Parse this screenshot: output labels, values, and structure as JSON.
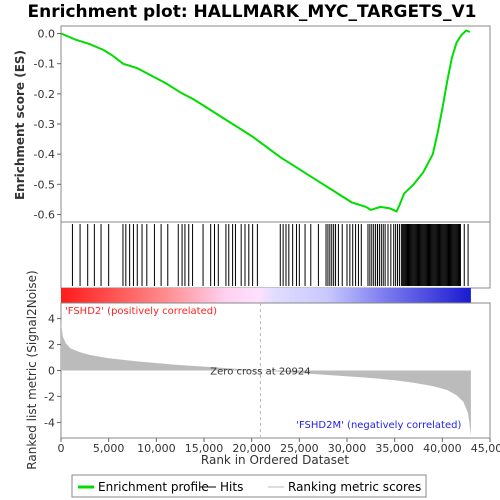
{
  "chart_data": {
    "title": "Enrichment plot: HALLMARK_MYC_TARGETS_V1",
    "top_panel": {
      "type": "line",
      "ylabel": "Enrichment score (ES)",
      "ylim": [
        -0.625,
        0.025
      ],
      "yticks": [
        "0.0",
        "-0.1",
        "-0.2",
        "-0.3",
        "-0.4",
        "-0.5",
        "-0.6"
      ],
      "ytick_values": [
        0.0,
        -0.1,
        -0.2,
        -0.3,
        -0.4,
        -0.5,
        -0.6
      ],
      "line_color": "#00dd00",
      "series": {
        "x": [
          0,
          1500,
          3000,
          4500,
          5500,
          6500,
          8000,
          9500,
          11000,
          12500,
          14000,
          15500,
          17000,
          18500,
          20000,
          21500,
          23000,
          24500,
          26000,
          27500,
          29000,
          30500,
          32000,
          32500,
          33500,
          34500,
          35200,
          35500,
          36000,
          37000,
          38000,
          39000,
          39500,
          40000,
          40500,
          41000,
          41500,
          42000,
          42500,
          42900
        ],
        "y": [
          0.0,
          -0.02,
          -0.035,
          -0.055,
          -0.075,
          -0.1,
          -0.115,
          -0.14,
          -0.165,
          -0.195,
          -0.22,
          -0.25,
          -0.28,
          -0.31,
          -0.34,
          -0.375,
          -0.41,
          -0.44,
          -0.47,
          -0.5,
          -0.53,
          -0.56,
          -0.575,
          -0.585,
          -0.575,
          -0.58,
          -0.59,
          -0.57,
          -0.53,
          -0.5,
          -0.46,
          -0.4,
          -0.33,
          -0.25,
          -0.16,
          -0.08,
          -0.03,
          -0.005,
          0.01,
          0.005
        ]
      }
    },
    "hits_panel": {
      "type": "hits",
      "hit_positions": [
        1200,
        2000,
        2800,
        3500,
        4200,
        5000,
        6500,
        6800,
        7200,
        7600,
        8000,
        8500,
        9000,
        9800,
        10500,
        11200,
        12300,
        12700,
        13000,
        13400,
        13800,
        14900,
        15700,
        16100,
        16500,
        17300,
        17600,
        18000,
        18300,
        18900,
        19300,
        19700,
        20100,
        20600,
        23000,
        23300,
        23600,
        23900,
        24300,
        24700,
        25000,
        25600,
        26200,
        27000,
        27800,
        28000,
        28200,
        28400,
        28600,
        28800,
        29100,
        29500,
        30000,
        30300,
        30600,
        30900,
        31200,
        31500,
        32200,
        32400,
        32600,
        32800,
        33000,
        33200,
        33400,
        33600,
        33800,
        34000,
        34300,
        34600,
        34900,
        35100,
        35300,
        35500,
        35700,
        35800,
        35900,
        36000,
        36100,
        36200,
        36300,
        36400,
        36500,
        36600,
        36700,
        36800,
        36900,
        37000,
        37100,
        37200,
        37300,
        37400,
        37500,
        37600,
        37700,
        37800,
        37900,
        38000,
        38100,
        38200,
        38300,
        38400,
        38500,
        38600,
        38700,
        38800,
        38900,
        39000,
        39100,
        39200,
        39300,
        39400,
        39500,
        39600,
        39700,
        39800,
        39900,
        40000,
        40100,
        40200,
        40300,
        40400,
        40500,
        40600,
        40700,
        40800,
        40900,
        41000,
        41100,
        41200,
        41300,
        41400,
        41500,
        41600,
        41700,
        41800,
        41900,
        42300,
        42700
      ]
    },
    "bottom_panel": {
      "type": "area",
      "ylabel": "Ranked list metric (Signal2Noise)",
      "xlabel": "Rank in Ordered Dataset",
      "ylim": [
        -5.2,
        5.2
      ],
      "yticks": [
        "4",
        "2",
        "0",
        "-2",
        "-4"
      ],
      "ytick_values": [
        4,
        2,
        0,
        -2,
        -4
      ],
      "xlim": [
        0,
        45000
      ],
      "xticks": [
        "0",
        "5,000",
        "10,000",
        "15,000",
        "20,000",
        "25,000",
        "30,000",
        "35,000",
        "40,000",
        "45,000"
      ],
      "xtick_values": [
        0,
        5000,
        10000,
        15000,
        20000,
        25000,
        30000,
        35000,
        40000,
        45000
      ],
      "series": {
        "x": [
          0,
          50,
          200,
          500,
          1000,
          2000,
          3000,
          5000,
          8000,
          12000,
          16000,
          20000,
          20924,
          24000,
          28000,
          32000,
          35000,
          37000,
          39000,
          40500,
          41500,
          42200,
          42700,
          43000
        ],
        "y": [
          4.0,
          3.4,
          2.6,
          2.1,
          1.7,
          1.4,
          1.2,
          0.95,
          0.7,
          0.45,
          0.25,
          0.05,
          0.0,
          -0.15,
          -0.35,
          -0.55,
          -0.75,
          -0.95,
          -1.2,
          -1.5,
          -1.9,
          -2.4,
          -3.3,
          -5.0
        ]
      },
      "fill_color": "#bbbbbb",
      "zero_cross_label": "Zero cross at 20924",
      "zero_cross_value": 20924,
      "pos_label": "'FSHD2' (positively correlated)",
      "neg_label": "'FSHD2M' (negatively correlated)",
      "pos_color": "#ff2222",
      "neg_color": "#2222ee"
    },
    "legend": [
      {
        "label": "Enrichment profile",
        "color": "#00dd00"
      },
      {
        "label": "Hits",
        "color": "#000000"
      },
      {
        "label": "Ranking metric scores",
        "color": "#bbbbbb"
      }
    ],
    "n_genes": 43000
  }
}
